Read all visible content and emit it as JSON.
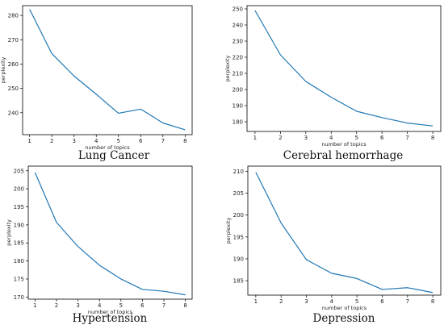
{
  "chart_data": [
    {
      "type": "line",
      "title": "Lung Cancer",
      "xlabel": "number of topics",
      "ylabel": "perplexity",
      "x": [
        1,
        2,
        3,
        4,
        5,
        6,
        7,
        8
      ],
      "xticks": [
        "1",
        "2",
        "3",
        "4",
        "5",
        "6",
        "7",
        "8"
      ],
      "yticks": [
        240,
        250,
        260,
        270,
        280
      ],
      "ylim": [
        231,
        284
      ],
      "series": [
        {
          "values": [
            282.5,
            264.3,
            255.1,
            247.6,
            239.8,
            241.5,
            235.8,
            233.0
          ]
        }
      ],
      "grid": false,
      "color": "#1f77b4"
    },
    {
      "type": "line",
      "title": "Cerebral hemorrhage",
      "xlabel": "number of topics",
      "ylabel": "perplexity",
      "x": [
        1,
        2,
        3,
        4,
        5,
        6,
        7,
        8
      ],
      "xticks": [
        "1",
        "2",
        "3",
        "4",
        "5",
        "6",
        "7",
        "8"
      ],
      "yticks": [
        180,
        190,
        200,
        210,
        220,
        230,
        240,
        250
      ],
      "ylim": [
        174,
        252
      ],
      "series": [
        {
          "values": [
            249.0,
            221.5,
            205.0,
            195.2,
            186.5,
            182.6,
            179.2,
            177.4
          ]
        }
      ],
      "grid": false,
      "color": "#1f77b4"
    },
    {
      "type": "line",
      "title": "Hypertension",
      "xlabel": "number of topics",
      "ylabel": "perplexity",
      "x": [
        1,
        2,
        3,
        4,
        5,
        6,
        7,
        8
      ],
      "xticks": [
        "1",
        "2",
        "3",
        "4",
        "5",
        "6",
        "7",
        "8"
      ],
      "yticks": [
        170,
        175,
        180,
        185,
        190,
        195,
        200,
        205
      ],
      "ylim": [
        169.4,
        206.3
      ],
      "series": [
        {
          "values": [
            204.5,
            190.7,
            184.0,
            178.8,
            175.0,
            172.1,
            171.6,
            170.6
          ]
        }
      ],
      "grid": false,
      "color": "#1f77b4"
    },
    {
      "type": "line",
      "title": "Depression",
      "xlabel": "number of topics",
      "ylabel": "perplexity",
      "x": [
        1,
        2,
        3,
        4,
        5,
        6,
        7,
        8
      ],
      "xticks": [
        "1",
        "2",
        "3",
        "4",
        "5",
        "6",
        "7",
        "8"
      ],
      "yticks": [
        185,
        190,
        195,
        200,
        205,
        210
      ],
      "ylim": [
        181.7,
        211.2
      ],
      "series": [
        {
          "values": [
            209.8,
            198.2,
            189.8,
            186.7,
            185.5,
            183.0,
            183.4,
            182.3
          ]
        }
      ],
      "grid": false,
      "color": "#1f77b4"
    }
  ]
}
